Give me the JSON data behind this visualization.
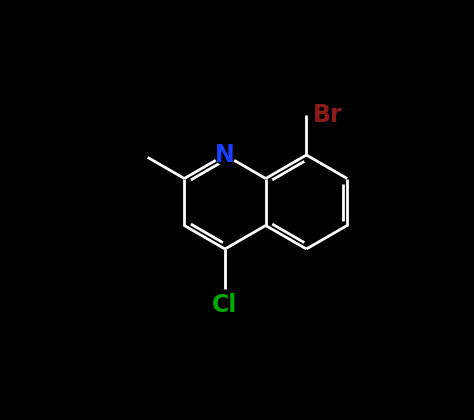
{
  "background_color": "#000000",
  "bond_color": "#ffffff",
  "bond_lw": 2.0,
  "atom_colors": {
    "N": "#1a3fff",
    "Br": "#8b1a1a",
    "Cl": "#00aa00",
    "C": "#ffffff"
  },
  "font_size_atom": 17,
  "figsize": [
    4.74,
    4.2
  ],
  "dpi": 100
}
